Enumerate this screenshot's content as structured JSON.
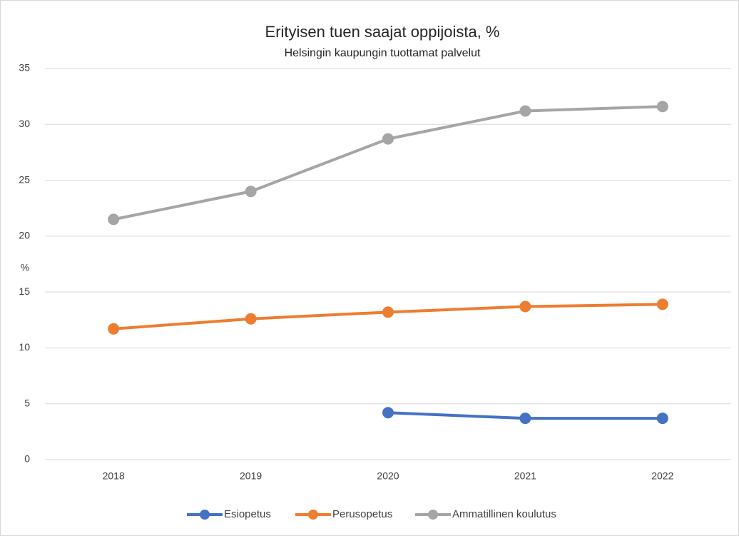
{
  "chart_data": {
    "type": "line",
    "title": "Erityisen tuen saajat oppijoista, %",
    "subtitle": "Helsingin kaupungin tuottamat palvelut",
    "y_label": "%",
    "categories": [
      "2018",
      "2019",
      "2020",
      "2021",
      "2022"
    ],
    "series": [
      {
        "name": "Esiopetus",
        "color": "#4472c4",
        "values": [
          null,
          null,
          4.2,
          3.7,
          3.7
        ]
      },
      {
        "name": "Perusopetus",
        "color": "#ed7d31",
        "values": [
          11.7,
          12.6,
          13.2,
          13.7,
          13.9
        ]
      },
      {
        "name": "Ammatillinen koulutus",
        "color": "#a5a5a5",
        "values": [
          21.5,
          24.0,
          28.7,
          31.2,
          31.6
        ]
      }
    ],
    "ylim": [
      0,
      35
    ],
    "yticks": [
      0,
      5,
      10,
      15,
      20,
      25,
      30,
      35
    ],
    "grid": true,
    "legend": "bottom"
  }
}
